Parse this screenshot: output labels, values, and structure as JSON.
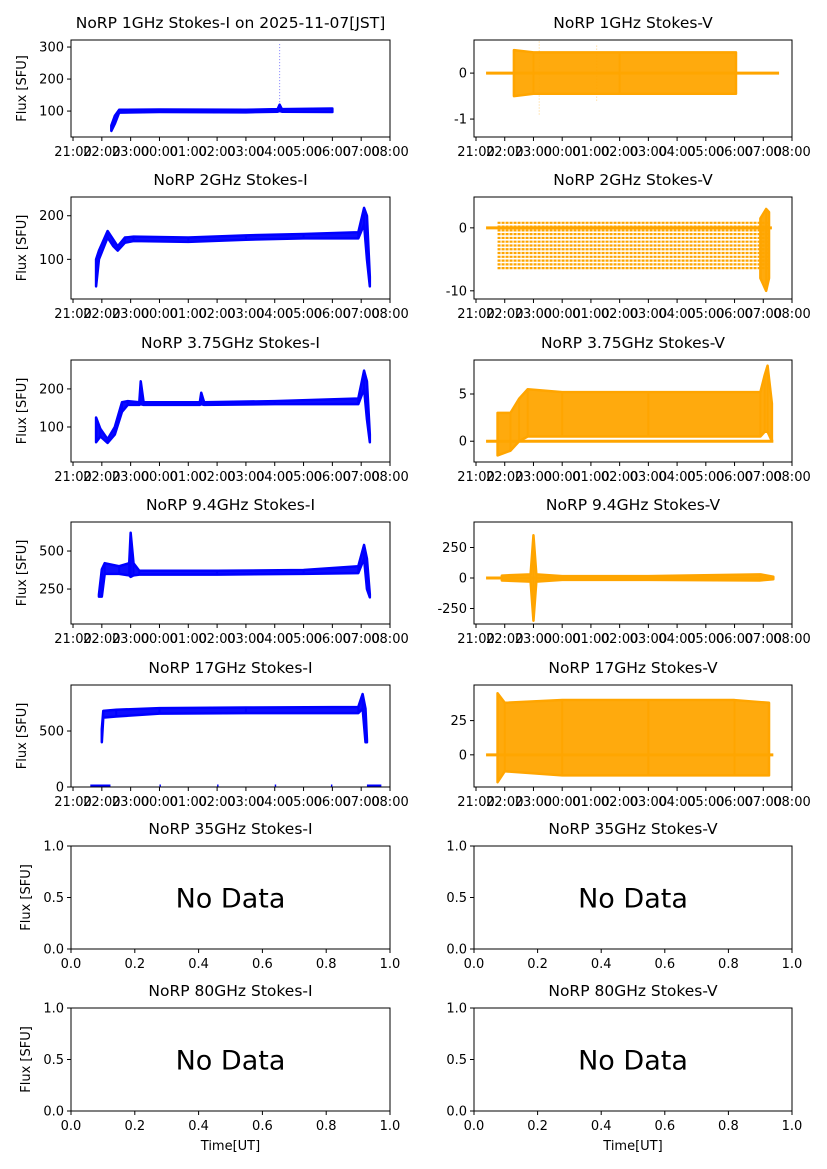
{
  "chart_data": [
    {
      "type": "scatter",
      "title": "NoRP 1GHz Stokes-I on 2025-11-07[JST]",
      "ylabel": "Flux [SFU]",
      "xlabel": "",
      "color": "#0000ff",
      "ylim": [
        19,
        322
      ],
      "yticks": [
        100,
        200,
        300
      ],
      "xaxis": "time",
      "xticks": [
        "21:00",
        "22:00",
        "23:00",
        "00:00",
        "01:00",
        "02:00",
        "03:00",
        "04:00",
        "05:00",
        "06:00",
        "07:00",
        "08:00"
      ],
      "envelope": [
        [
          1.33,
          38,
          55
        ],
        [
          1.45,
          60,
          85
        ],
        [
          1.6,
          95,
          104
        ],
        [
          3,
          97,
          105
        ],
        [
          6,
          96,
          104
        ],
        [
          7.1,
          98,
          106
        ],
        [
          7.17,
          100,
          120
        ],
        [
          7.25,
          98,
          106
        ],
        [
          9.0,
          97,
          108
        ]
      ],
      "spikes": [
        [
          7.17,
          100,
          310
        ]
      ]
    },
    {
      "type": "scatter",
      "title": "NoRP 1GHz Stokes-V",
      "ylabel": "",
      "xlabel": "",
      "color": "#ffa500",
      "ylim": [
        -1.39,
        0.72
      ],
      "yticks": [
        -1,
        0
      ],
      "xaxis": "time",
      "xticks": [
        "21:00",
        "22:00",
        "23:00",
        "00:00",
        "01:00",
        "02:00",
        "03:00",
        "04:00",
        "05:00",
        "06:00",
        "07:00",
        "08:00"
      ],
      "baseline": [
        0.35,
        10.55,
        0
      ],
      "envelope": [
        [
          1.32,
          -0.5,
          0.5
        ],
        [
          2,
          -0.45,
          0.45
        ],
        [
          5,
          -0.45,
          0.45
        ],
        [
          9.05,
          -0.45,
          0.45
        ]
      ],
      "spikes": [
        [
          2.2,
          -0.9,
          0.7
        ],
        [
          4.2,
          -0.6,
          0.6
        ]
      ]
    },
    {
      "type": "scatter",
      "title": "NoRP 2GHz Stokes-I",
      "ylabel": "Flux [SFU]",
      "xlabel": "",
      "color": "#0000ff",
      "ylim": [
        9,
        243
      ],
      "yticks": [
        100,
        200
      ],
      "xaxis": "time",
      "xticks": [
        "21:00",
        "22:00",
        "23:00",
        "00:00",
        "01:00",
        "02:00",
        "03:00",
        "04:00",
        "05:00",
        "06:00",
        "07:00",
        "08:00"
      ],
      "envelope": [
        [
          0.8,
          38,
          100
        ],
        [
          0.9,
          100,
          120
        ],
        [
          1.2,
          150,
          165
        ],
        [
          1.4,
          130,
          145
        ],
        [
          1.55,
          120,
          130
        ],
        [
          1.8,
          138,
          150
        ],
        [
          2.1,
          142,
          152
        ],
        [
          4,
          140,
          150
        ],
        [
          6,
          145,
          155
        ],
        [
          8,
          148,
          158
        ],
        [
          9.9,
          148,
          162
        ],
        [
          10.1,
          180,
          218
        ],
        [
          10.2,
          100,
          200
        ],
        [
          10.3,
          38,
          60
        ]
      ],
      "spikes": []
    },
    {
      "type": "scatter",
      "title": "NoRP 2GHz Stokes-V",
      "ylabel": "",
      "xlabel": "",
      "color": "#ffa500",
      "ylim": [
        -11.3,
        4.9
      ],
      "yticks": [
        -10,
        0
      ],
      "xaxis": "time",
      "xticks": [
        "21:00",
        "22:00",
        "23:00",
        "00:00",
        "01:00",
        "02:00",
        "03:00",
        "04:00",
        "05:00",
        "06:00",
        "07:00",
        "08:00"
      ],
      "baseline": [
        0.35,
        10.3,
        0
      ],
      "stripes": {
        "from": -6.4,
        "to": 1.2,
        "step": 0.6,
        "t0": 0.75,
        "t1": 10.2
      },
      "envelope": [
        [
          9.9,
          -8,
          1.5
        ],
        [
          10.1,
          -10,
          3
        ],
        [
          10.2,
          -8,
          2.5
        ]
      ],
      "spikes": []
    },
    {
      "type": "scatter",
      "title": "NoRP 3.75GHz Stokes-I",
      "ylabel": "Flux [SFU]",
      "xlabel": "",
      "color": "#0000ff",
      "ylim": [
        8,
        276
      ],
      "yticks": [
        100,
        200
      ],
      "xaxis": "time",
      "xticks": [
        "21:00",
        "22:00",
        "23:00",
        "00:00",
        "01:00",
        "02:00",
        "03:00",
        "04:00",
        "05:00",
        "06:00",
        "07:00",
        "08:00"
      ],
      "envelope": [
        [
          0.8,
          60,
          125
        ],
        [
          0.95,
          75,
          95
        ],
        [
          1.2,
          58,
          68
        ],
        [
          1.45,
          80,
          100
        ],
        [
          1.7,
          140,
          165
        ],
        [
          1.9,
          158,
          168
        ],
        [
          2.3,
          158,
          165
        ],
        [
          2.35,
          160,
          220
        ],
        [
          2.45,
          158,
          165
        ],
        [
          4.4,
          158,
          165
        ],
        [
          4.45,
          160,
          190
        ],
        [
          4.55,
          158,
          165
        ],
        [
          7,
          160,
          168
        ],
        [
          9.9,
          160,
          175
        ],
        [
          10.1,
          200,
          248
        ],
        [
          10.2,
          120,
          220
        ],
        [
          10.3,
          60,
          80
        ]
      ],
      "spikes": []
    },
    {
      "type": "scatter",
      "title": "NoRP 3.75GHz Stokes-V",
      "ylabel": "",
      "xlabel": "",
      "color": "#ffa500",
      "ylim": [
        -2.2,
        8.6
      ],
      "yticks": [
        0,
        5
      ],
      "xaxis": "time",
      "xticks": [
        "21:00",
        "22:00",
        "23:00",
        "00:00",
        "01:00",
        "02:00",
        "03:00",
        "04:00",
        "05:00",
        "06:00",
        "07:00",
        "08:00"
      ],
      "baseline": [
        0.35,
        10.35,
        0
      ],
      "envelope": [
        [
          0.75,
          -1.5,
          3
        ],
        [
          1.2,
          -1,
          3
        ],
        [
          1.5,
          0,
          4.5
        ],
        [
          1.8,
          0.5,
          5.5
        ],
        [
          3,
          0.5,
          5.2
        ],
        [
          6,
          0.5,
          5.2
        ],
        [
          9.9,
          0.5,
          5.2
        ],
        [
          10.05,
          1,
          7
        ],
        [
          10.15,
          1,
          8
        ],
        [
          10.3,
          0,
          4
        ]
      ],
      "spikes": []
    },
    {
      "type": "scatter",
      "title": "NoRP 9.4GHz Stokes-I",
      "ylabel": "Flux [SFU]",
      "xlabel": "",
      "color": "#0000ff",
      "ylim": [
        20,
        691
      ],
      "yticks": [
        250,
        500
      ],
      "xaxis": "time",
      "xticks": [
        "21:00",
        "22:00",
        "23:00",
        "00:00",
        "01:00",
        "02:00",
        "03:00",
        "04:00",
        "05:00",
        "06:00",
        "07:00",
        "08:00"
      ],
      "envelope": [
        [
          0.9,
          200,
          215
        ],
        [
          1.0,
          200,
          380
        ],
        [
          1.1,
          350,
          420
        ],
        [
          1.6,
          350,
          400
        ],
        [
          1.95,
          340,
          420
        ],
        [
          2.0,
          330,
          620
        ],
        [
          2.1,
          340,
          420
        ],
        [
          2.3,
          345,
          370
        ],
        [
          5,
          345,
          370
        ],
        [
          8,
          350,
          375
        ],
        [
          9.9,
          355,
          400
        ],
        [
          10.1,
          450,
          540
        ],
        [
          10.2,
          250,
          450
        ],
        [
          10.3,
          195,
          215
        ]
      ],
      "spikes": []
    },
    {
      "type": "scatter",
      "title": "NoRP 9.4GHz Stokes-V",
      "ylabel": "",
      "xlabel": "",
      "color": "#ffa500",
      "ylim": [
        -377,
        459
      ],
      "yticks": [
        -250,
        0,
        250
      ],
      "xaxis": "time",
      "xticks": [
        "21:00",
        "22:00",
        "23:00",
        "00:00",
        "01:00",
        "02:00",
        "03:00",
        "04:00",
        "05:00",
        "06:00",
        "07:00",
        "08:00"
      ],
      "baseline": [
        0.35,
        10.35,
        0
      ],
      "envelope": [
        [
          0.9,
          -20,
          20
        ],
        [
          1.9,
          -30,
          30
        ],
        [
          2.0,
          -350,
          350
        ],
        [
          2.1,
          -30,
          30
        ],
        [
          3,
          -15,
          15
        ],
        [
          6,
          -15,
          15
        ],
        [
          9.9,
          -20,
          30
        ],
        [
          10.35,
          -10,
          10
        ]
      ],
      "spikes": []
    },
    {
      "type": "scatter",
      "title": "NoRP 17GHz Stokes-I",
      "ylabel": "Flux [SFU]",
      "xlabel": "",
      "color": "#0000ff",
      "ylim": [
        0,
        911
      ],
      "yticks": [
        0,
        500
      ],
      "xaxis": "time",
      "xticks": [
        "21:00",
        "22:00",
        "23:00",
        "00:00",
        "01:00",
        "02:00",
        "03:00",
        "04:00",
        "05:00",
        "06:00",
        "07:00",
        "08:00"
      ],
      "envelope": [
        [
          1.0,
          400,
          520
        ],
        [
          1.05,
          620,
          680
        ],
        [
          1.5,
          630,
          690
        ],
        [
          3,
          655,
          705
        ],
        [
          6,
          660,
          710
        ],
        [
          9.9,
          660,
          715
        ],
        [
          10.05,
          700,
          830
        ],
        [
          10.15,
          400,
          700
        ],
        [
          10.2,
          400,
          420
        ]
      ],
      "zeros": [
        [
          0.6,
          1.3
        ],
        [
          3.0,
          3.05
        ],
        [
          5.0,
          5.05
        ],
        [
          7.0,
          7.05
        ],
        [
          8.95,
          9.0
        ],
        [
          10.2,
          10.7
        ]
      ],
      "spikes": []
    },
    {
      "type": "scatter",
      "title": "NoRP 17GHz Stokes-V",
      "ylabel": "",
      "xlabel": "",
      "color": "#ffa500",
      "ylim": [
        -23.5,
        51
      ],
      "yticks": [
        0,
        25
      ],
      "xaxis": "time",
      "xticks": [
        "21:00",
        "22:00",
        "23:00",
        "00:00",
        "01:00",
        "02:00",
        "03:00",
        "04:00",
        "05:00",
        "06:00",
        "07:00",
        "08:00"
      ],
      "baseline": [
        0.35,
        10.35,
        0
      ],
      "envelope": [
        [
          0.75,
          -20,
          45
        ],
        [
          1,
          -12,
          38
        ],
        [
          3,
          -15,
          40
        ],
        [
          6,
          -15,
          40
        ],
        [
          9,
          -15,
          40
        ],
        [
          10.2,
          -15,
          38
        ]
      ],
      "spikes": []
    },
    {
      "type": "scatter",
      "title": "NoRP 35GHz Stokes-I",
      "ylabel": "Flux [SFU]",
      "xlabel": "",
      "nodata": "No Data",
      "ylim": [
        0,
        1
      ],
      "yticks": [
        "0.0",
        "0.5",
        "1.0"
      ],
      "xaxis": "numeric",
      "xticks": [
        "0.0",
        "0.2",
        "0.4",
        "0.6",
        "0.8",
        "1.0"
      ]
    },
    {
      "type": "scatter",
      "title": "NoRP 35GHz Stokes-V",
      "ylabel": "",
      "xlabel": "",
      "nodata": "No Data",
      "ylim": [
        0,
        1
      ],
      "yticks": [
        "0.0",
        "0.5",
        "1.0"
      ],
      "xaxis": "numeric",
      "xticks": [
        "0.0",
        "0.2",
        "0.4",
        "0.6",
        "0.8",
        "1.0"
      ]
    },
    {
      "type": "scatter",
      "title": "NoRP 80GHz Stokes-I",
      "ylabel": "Flux [SFU]",
      "xlabel": "Time[UT]",
      "nodata": "No Data",
      "ylim": [
        0,
        1
      ],
      "yticks": [
        "0.0",
        "0.5",
        "1.0"
      ],
      "xaxis": "numeric",
      "xticks": [
        "0.0",
        "0.2",
        "0.4",
        "0.6",
        "0.8",
        "1.0"
      ]
    },
    {
      "type": "scatter",
      "title": "NoRP 80GHz Stokes-V",
      "ylabel": "",
      "xlabel": "Time[UT]",
      "nodata": "No Data",
      "ylim": [
        0,
        1
      ],
      "yticks": [
        "0.0",
        "0.5",
        "1.0"
      ],
      "xaxis": "numeric",
      "xticks": [
        "0.0",
        "0.2",
        "0.4",
        "0.6",
        "0.8",
        "1.0"
      ]
    }
  ]
}
